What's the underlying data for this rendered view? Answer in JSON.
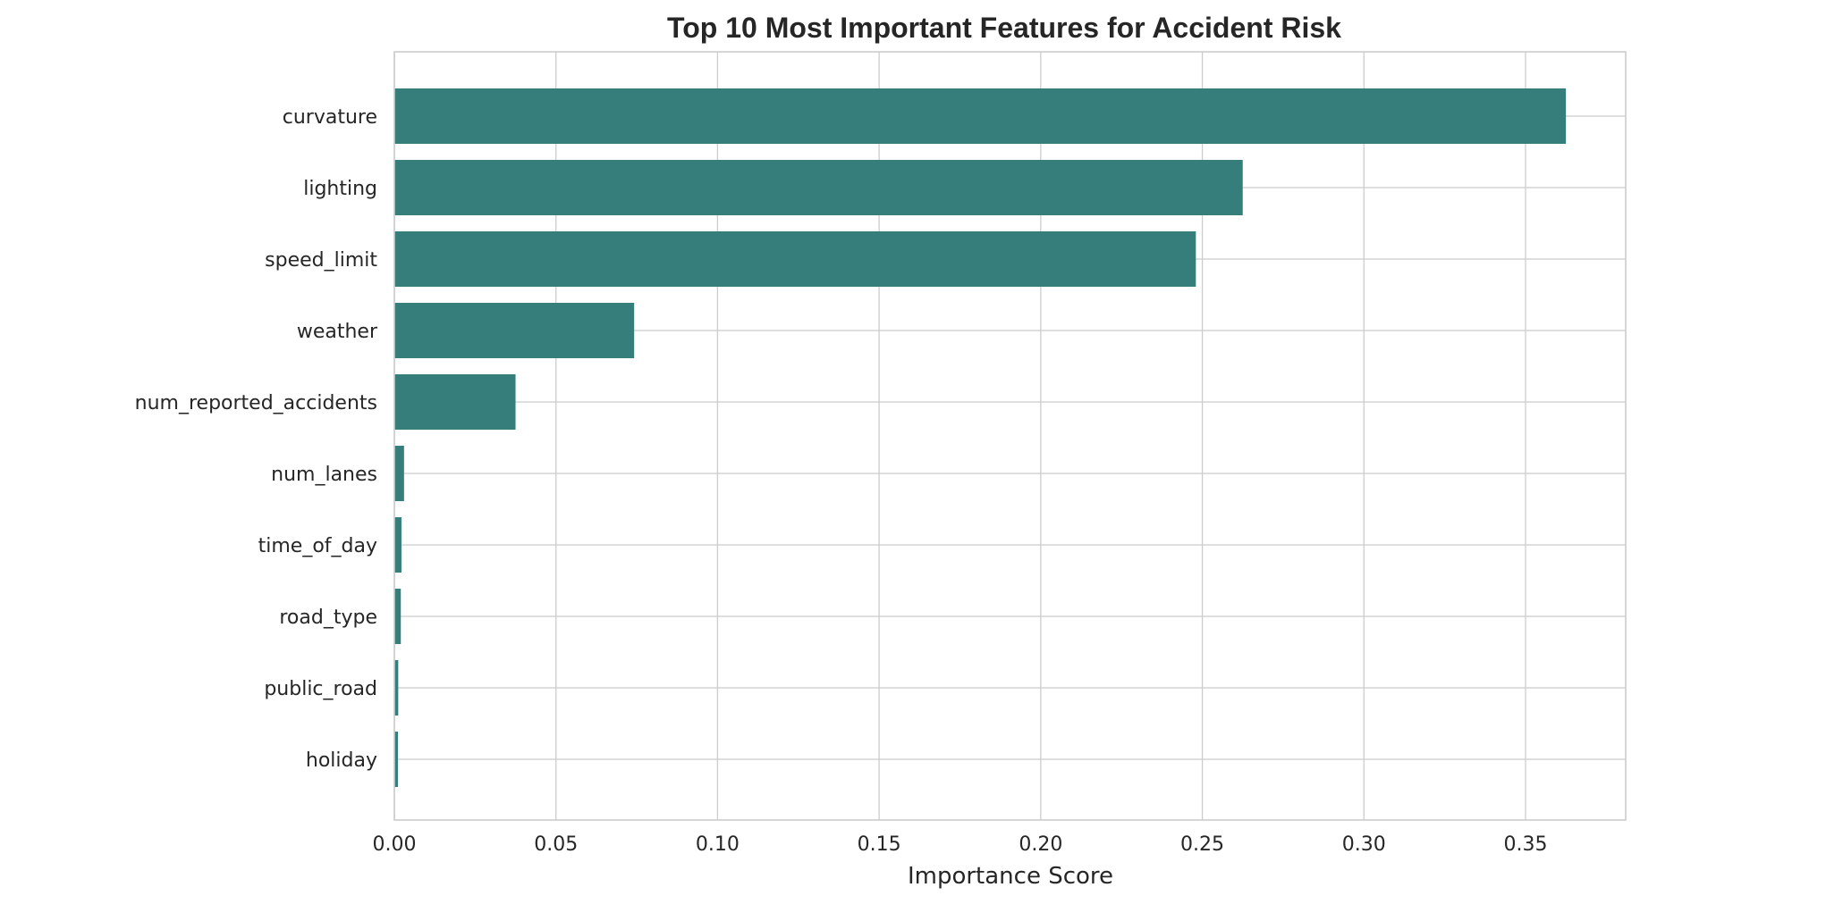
{
  "chart_data": {
    "type": "bar",
    "orientation": "horizontal",
    "title": "Top 10 Most Important Features for Accident Risk",
    "xlabel": "Importance Score",
    "ylabel": "",
    "categories": [
      "curvature",
      "lighting",
      "speed_limit",
      "weather",
      "num_reported_accidents",
      "num_lanes",
      "time_of_day",
      "road_type",
      "public_road",
      "holiday"
    ],
    "values": [
      0.3625,
      0.2625,
      0.248,
      0.0742,
      0.0375,
      0.003,
      0.0022,
      0.002,
      0.0012,
      0.0011
    ],
    "xlim": [
      0,
      0.381
    ],
    "xticks": [
      0,
      0.05,
      0.1,
      0.15,
      0.2,
      0.25,
      0.3,
      0.35
    ],
    "xtick_labels": [
      "0.00",
      "0.05",
      "0.10",
      "0.15",
      "0.20",
      "0.25",
      "0.30",
      "0.35"
    ],
    "grid": true,
    "bar_color": "#367e7c"
  }
}
